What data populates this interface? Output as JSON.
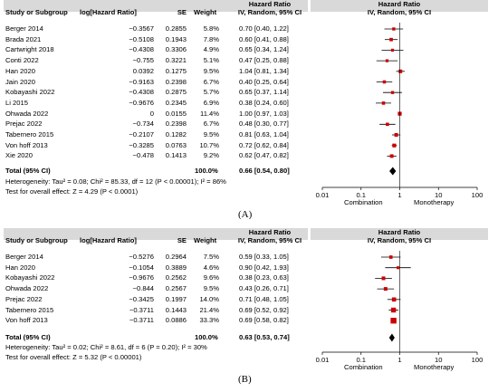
{
  "header": {
    "col_study": "Study or Subgroup",
    "col_loghr": "log[Hazard Ratio]",
    "col_se": "SE",
    "col_weight": "Weight",
    "col_hr_title": "Hazard Ratio",
    "col_hr_sub": "IV, Random, 95% CI",
    "plot_hr_title": "Hazard Ratio",
    "plot_hr_sub": "IV, Random, 95% CI"
  },
  "panel_a": {
    "label": "(A)",
    "total_label": "Total (95% CI)",
    "total_weight": "100.0%",
    "total_ci": "0.66 [0.54, 0.80]",
    "heterogeneity": "Heterogeneity: Tau² = 0.08; Chi² = 85.33, df = 12 (P < 0.00001); I² = 86%",
    "overall_effect": "Test for overall effect: Z = 4.29 (P < 0.0001)",
    "axis_ticks": [
      "0.01",
      "0.1",
      "1",
      "10",
      "100"
    ],
    "favours_left": "Combination",
    "favours_right": "Monotherapy"
  },
  "panel_b": {
    "label": "(B)",
    "total_label": "Total (95% CI)",
    "total_weight": "100.0%",
    "total_ci": "0.63 [0.53, 0.74]",
    "heterogeneity": "Heterogeneity: Tau² = 0.02; Chi² = 8.61, df = 6 (P = 0.20); I² = 30%",
    "overall_effect": "Test for overall effect: Z = 5.32 (P < 0.00001)",
    "axis_ticks": [
      "0.01",
      "0.1",
      "1",
      "10",
      "100"
    ],
    "favours_left": "Combination",
    "favours_right": "Monotherapy"
  },
  "colors": {
    "marker": "#cc0000",
    "header_bg": "#d9d9d9",
    "line": "#000000"
  },
  "chart_data": [
    {
      "type": "forest",
      "scale": "log",
      "xlim": [
        0.01,
        100
      ],
      "studies": [
        {
          "name": "Berger 2014",
          "log_hr": "−0.3567",
          "se": "0.2855",
          "weight": "5.8%",
          "ci_text": "0.70 [0.40, 1.22]",
          "hr": 0.7,
          "lo": 0.4,
          "hi": 1.22,
          "w": 5.8
        },
        {
          "name": "Brada 2021",
          "log_hr": "−0.5108",
          "se": "0.1943",
          "weight": "7.8%",
          "ci_text": "0.60 [0.41, 0.88]",
          "hr": 0.6,
          "lo": 0.41,
          "hi": 0.88,
          "w": 7.8
        },
        {
          "name": "Cartwright 2018",
          "log_hr": "−0.4308",
          "se": "0.3306",
          "weight": "4.9%",
          "ci_text": "0.65 [0.34, 1.24]",
          "hr": 0.65,
          "lo": 0.34,
          "hi": 1.24,
          "w": 4.9
        },
        {
          "name": "Conti 2022",
          "log_hr": "−0.755",
          "se": "0.3221",
          "weight": "5.1%",
          "ci_text": "0.47 [0.25, 0.88]",
          "hr": 0.47,
          "lo": 0.25,
          "hi": 0.88,
          "w": 5.1
        },
        {
          "name": "Han 2020",
          "log_hr": "0.0392",
          "se": "0.1275",
          "weight": "9.5%",
          "ci_text": "1.04 [0.81, 1.34]",
          "hr": 1.04,
          "lo": 0.81,
          "hi": 1.34,
          "w": 9.5
        },
        {
          "name": "Jain 2020",
          "log_hr": "−0.9163",
          "se": "0.2398",
          "weight": "6.7%",
          "ci_text": "0.40 [0.25, 0.64]",
          "hr": 0.4,
          "lo": 0.25,
          "hi": 0.64,
          "w": 6.7
        },
        {
          "name": "Kobayashi 2022",
          "log_hr": "−0.4308",
          "se": "0.2875",
          "weight": "5.7%",
          "ci_text": "0.65 [0.37, 1.14]",
          "hr": 0.65,
          "lo": 0.37,
          "hi": 1.14,
          "w": 5.7
        },
        {
          "name": "Li 2015",
          "log_hr": "−0.9676",
          "se": "0.2345",
          "weight": "6.9%",
          "ci_text": "0.38 [0.24, 0.60]",
          "hr": 0.38,
          "lo": 0.24,
          "hi": 0.6,
          "w": 6.9
        },
        {
          "name": "Ohwada 2022",
          "log_hr": "0",
          "se": "0.0155",
          "weight": "11.4%",
          "ci_text": "1.00 [0.97, 1.03]",
          "hr": 1.0,
          "lo": 0.97,
          "hi": 1.03,
          "w": 11.4
        },
        {
          "name": "Prejac 2022",
          "log_hr": "−0.734",
          "se": "0.2398",
          "weight": "6.7%",
          "ci_text": "0.48 [0.30, 0.77]",
          "hr": 0.48,
          "lo": 0.3,
          "hi": 0.77,
          "w": 6.7
        },
        {
          "name": "Tabernero 2015",
          "log_hr": "−0.2107",
          "se": "0.1282",
          "weight": "9.5%",
          "ci_text": "0.81 [0.63, 1.04]",
          "hr": 0.81,
          "lo": 0.63,
          "hi": 1.04,
          "w": 9.5
        },
        {
          "name": "Von hoff 2013",
          "log_hr": "−0.3285",
          "se": "0.0763",
          "weight": "10.7%",
          "ci_text": "0.72 [0.62, 0.84]",
          "hr": 0.72,
          "lo": 0.62,
          "hi": 0.84,
          "w": 10.7
        },
        {
          "name": "Xie 2020",
          "log_hr": "−0.478",
          "se": "0.1413",
          "weight": "9.2%",
          "ci_text": "0.62 [0.47, 0.82]",
          "hr": 0.62,
          "lo": 0.47,
          "hi": 0.82,
          "w": 9.2
        }
      ],
      "pooled": {
        "hr": 0.66,
        "lo": 0.54,
        "hi": 0.8
      }
    },
    {
      "type": "forest",
      "scale": "log",
      "xlim": [
        0.01,
        100
      ],
      "studies": [
        {
          "name": "Berger 2014",
          "log_hr": "−0.5276",
          "se": "0.2964",
          "weight": "7.5%",
          "ci_text": "0.59 [0.33, 1.05]",
          "hr": 0.59,
          "lo": 0.33,
          "hi": 1.05,
          "w": 7.5
        },
        {
          "name": "Han 2020",
          "log_hr": "−0.1054",
          "se": "0.3889",
          "weight": "4.6%",
          "ci_text": "0.90 [0.42, 1.93]",
          "hr": 0.9,
          "lo": 0.42,
          "hi": 1.93,
          "w": 4.6
        },
        {
          "name": "Kobayashi 2022",
          "log_hr": "−0.9676",
          "se": "0.2562",
          "weight": "9.6%",
          "ci_text": "0.38 [0.23, 0.63]",
          "hr": 0.38,
          "lo": 0.23,
          "hi": 0.63,
          "w": 9.6
        },
        {
          "name": "Ohwada 2022",
          "log_hr": "−0.844",
          "se": "0.2567",
          "weight": "9.5%",
          "ci_text": "0.43 [0.26, 0.71]",
          "hr": 0.43,
          "lo": 0.26,
          "hi": 0.71,
          "w": 9.5
        },
        {
          "name": "Prejac 2022",
          "log_hr": "−0.3425",
          "se": "0.1997",
          "weight": "14.0%",
          "ci_text": "0.71 [0.48, 1.05]",
          "hr": 0.71,
          "lo": 0.48,
          "hi": 1.05,
          "w": 14.0
        },
        {
          "name": "Tabernero 2015",
          "log_hr": "−0.3711",
          "se": "0.1443",
          "weight": "21.4%",
          "ci_text": "0.69 [0.52, 0.92]",
          "hr": 0.69,
          "lo": 0.52,
          "hi": 0.92,
          "w": 21.4
        },
        {
          "name": "Von hoff 2013",
          "log_hr": "−0.3711",
          "se": "0.0886",
          "weight": "33.3%",
          "ci_text": "0.69 [0.58, 0.82]",
          "hr": 0.69,
          "lo": 0.58,
          "hi": 0.82,
          "w": 33.3
        }
      ],
      "pooled": {
        "hr": 0.63,
        "lo": 0.53,
        "hi": 0.74
      }
    }
  ]
}
